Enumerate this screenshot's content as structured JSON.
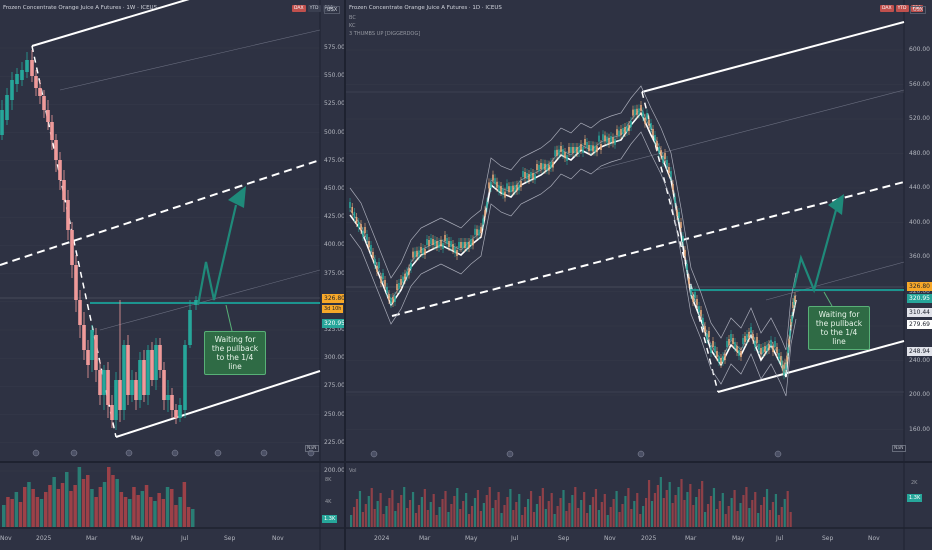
{
  "colors": {
    "up": "#26a69a",
    "down": "#ef9a9a",
    "teal_line": "#1aa39a",
    "arrow": "#1f8a7a",
    "note_bg": "#2f6b45"
  },
  "left": {
    "title": "Frozen Concentrate Orange Juice A Futures · 1W · ICEUS",
    "buttons": [
      "DAX",
      "YTD",
      "P30"
    ],
    "currency": "USX",
    "price_ticks": [
      "575.00",
      "550.00",
      "525.00",
      "500.00",
      "475.00",
      "450.00",
      "425.00",
      "400.00",
      "375.00",
      "350.00",
      "325.00",
      "300.00",
      "275.00",
      "250.00",
      "225.00",
      "200.00"
    ],
    "x_labels": [
      "Nov",
      "2025",
      "Mar",
      "May",
      "Jul",
      "Sep",
      "Nov"
    ],
    "price_tag": "326.80",
    "countdown_tag": "3d 10h",
    "green_tag": "320.95",
    "vol_ticks": [
      "8K",
      "4K"
    ],
    "vol_tag": "1.3K",
    "nan_label": "NaN",
    "note": [
      "Waiting for",
      "the pullback",
      "to the 1/4 line"
    ]
  },
  "right": {
    "title": "Frozen Concentrate Orange Juice A Futures · 1D · ICEUS",
    "sub_lines": [
      "BC",
      "KC",
      "3 THUMBS UP [DIGGERDOG]"
    ],
    "buttons": [
      "DAX",
      "YTD",
      "P30"
    ],
    "currency": "USX",
    "price_ticks": [
      "600.00",
      "560.00",
      "520.00",
      "480.00",
      "440.00",
      "400.00",
      "360.00",
      "320.00",
      "280.00",
      "240.00",
      "200.00",
      "160.00"
    ],
    "x_labels": [
      "2024",
      "Mar",
      "May",
      "Jul",
      "Sep",
      "Nov",
      "2025",
      "Mar",
      "May",
      "Jul",
      "Sep",
      "Nov"
    ],
    "price_tag": "326.80",
    "tags": [
      "320.95",
      "310.44",
      "279.69",
      "248.94"
    ],
    "vol_label": "Vol",
    "vol_ticks": [
      "2K"
    ],
    "vol_tag": "1.3K",
    "nan_label": "NaN",
    "note": [
      "Waiting for",
      "the pullback",
      "to the 1/4 line"
    ]
  }
}
